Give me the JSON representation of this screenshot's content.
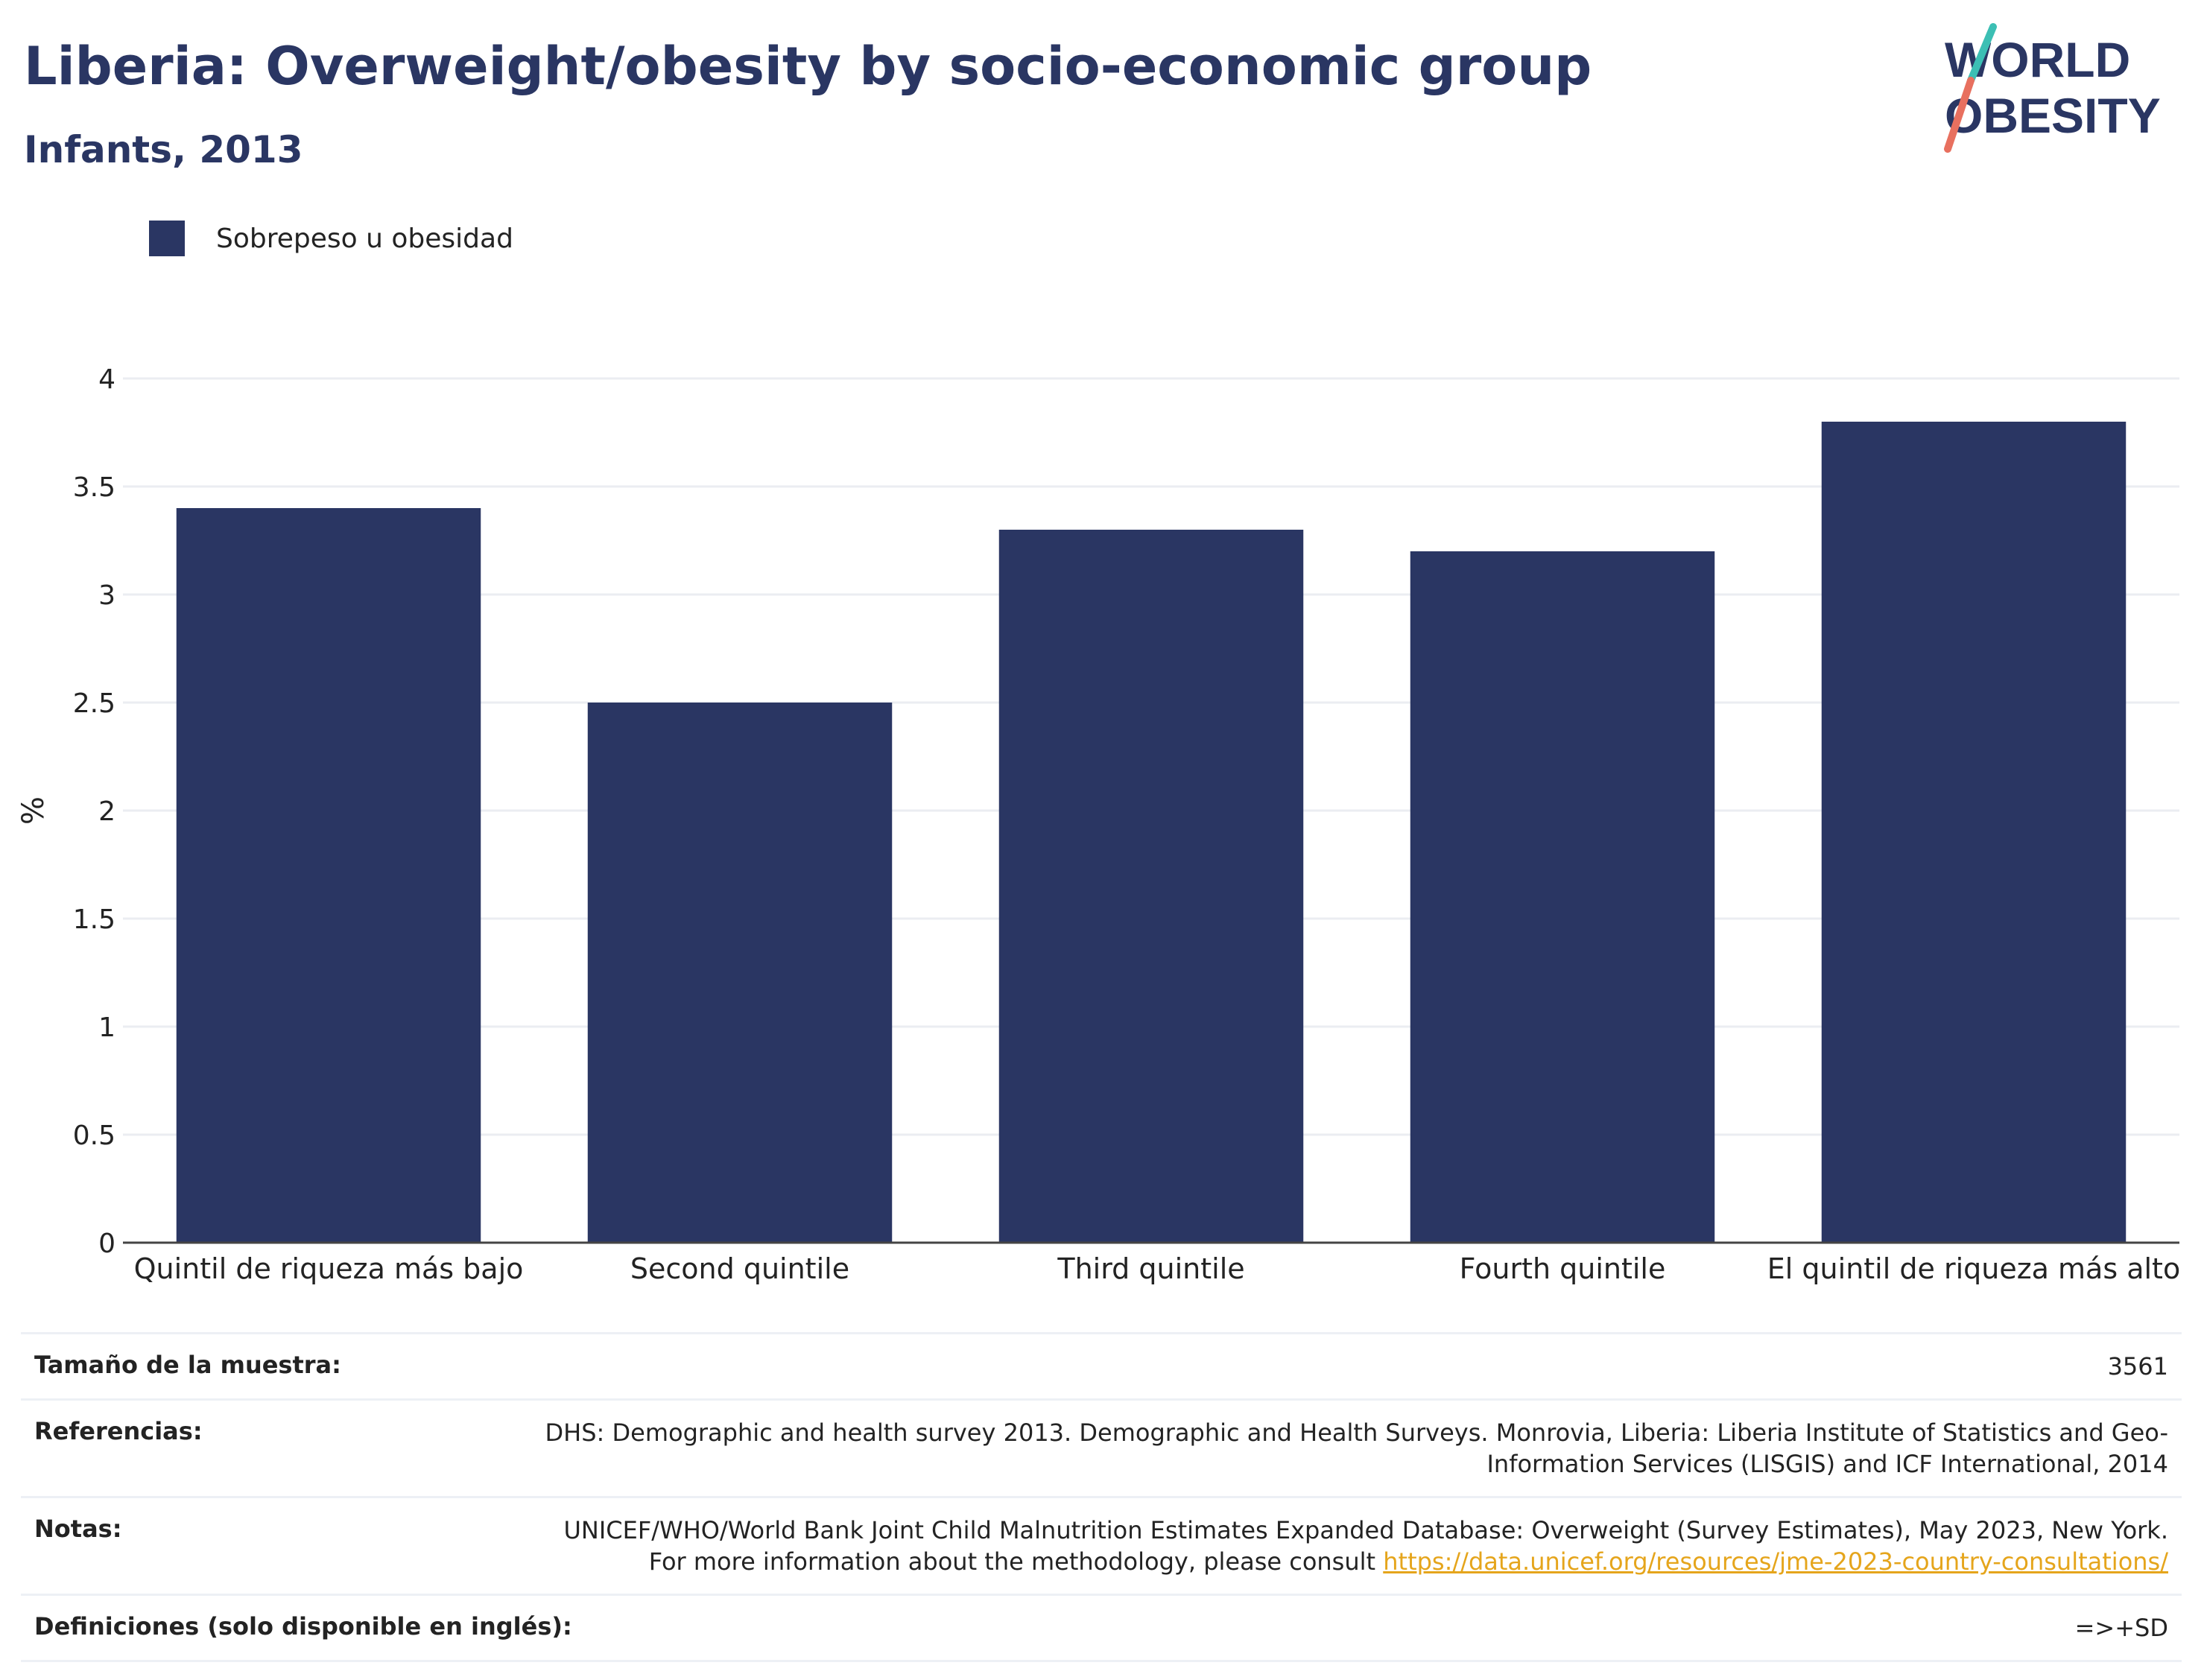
{
  "header": {
    "title": "Liberia: Overweight/obesity by socio-economic group",
    "subtitle": "Infants, 2013"
  },
  "logo": {
    "line1": "WORLD",
    "line2": "OBESITY",
    "colors": [
      "#2a3663",
      "#3cbfb4",
      "#e8705f"
    ]
  },
  "legend": {
    "label": "Sobrepeso u obesidad",
    "color": "#2a3663"
  },
  "chart_data": {
    "type": "bar",
    "categories": [
      "Quintil de riqueza más bajo",
      "Second quintile",
      "Third quintile",
      "Fourth quintile",
      "El quintil de riqueza más alto"
    ],
    "series": [
      {
        "name": "Sobrepeso u obesidad",
        "values": [
          3.4,
          2.5,
          3.3,
          3.2,
          3.8
        ]
      }
    ],
    "ylabel": "%",
    "ylim": [
      0,
      4
    ],
    "yticks": [
      "0",
      "0.5",
      "1",
      "1.5",
      "2",
      "2.5",
      "3",
      "3.5",
      "4"
    ],
    "grid": true,
    "legend_position": "top-left"
  },
  "footer": {
    "sample_label": "Tamaño de la muestra:",
    "sample_value": "3561",
    "refs_label": "Referencias:",
    "refs_value": "DHS: Demographic and health survey 2013. Demographic and Health Surveys. Monrovia, Liberia: Liberia Institute of Statistics and Geo-Information Services (LISGIS) and ICF International, 2014",
    "notes_label": "Notas:",
    "notes_value": "UNICEF/WHO/World Bank Joint Child Malnutrition Estimates Expanded Database: Overweight (Survey Estimates), May 2023, New York. For more information about the methodology, please consult ",
    "notes_link": "https://data.unicef.org/resources/jme-2023-country-consultations/",
    "defs_label": "Definiciones (solo disponible en inglés):",
    "defs_value": "=>+SD"
  }
}
